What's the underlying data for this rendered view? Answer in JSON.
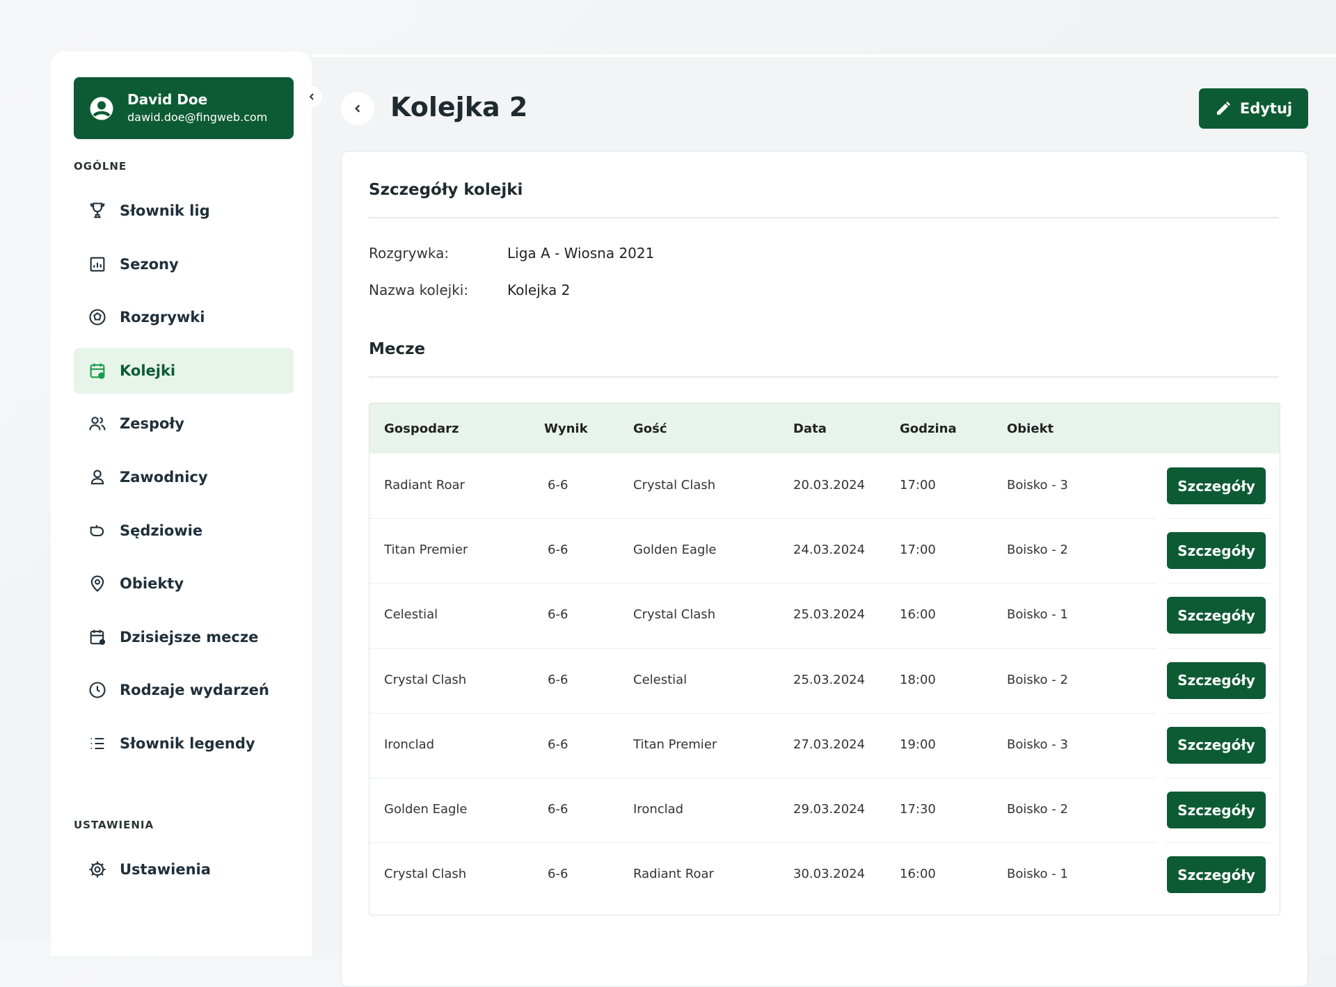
{
  "user": {
    "name": "David Doe",
    "email": "dawid.doe@fingweb.com"
  },
  "sidebar": {
    "sections": [
      {
        "label": "OGÓLNE",
        "items": [
          {
            "label": "Słownik lig"
          },
          {
            "label": "Sezony"
          },
          {
            "label": "Rozgrywki"
          },
          {
            "label": "Kolejki",
            "active": true
          },
          {
            "label": "Zespoły"
          },
          {
            "label": "Zawodnicy"
          },
          {
            "label": "Sędziowie"
          },
          {
            "label": "Obiekty"
          },
          {
            "label": "Dzisiejsze mecze"
          },
          {
            "label": "Rodzaje wydarzeń"
          },
          {
            "label": "Słownik legendy"
          }
        ]
      },
      {
        "label": "USTAWIENIA",
        "items": [
          {
            "label": "Ustawienia"
          }
        ]
      }
    ]
  },
  "header": {
    "title": "Kolejka 2",
    "edit": "Edytuj"
  },
  "details": {
    "title": "Szczegóły kolejki",
    "fields": [
      {
        "label": "Rozgrywka:",
        "value": "Liga A - Wiosna 2021"
      },
      {
        "label": "Nazwa kolejki:",
        "value": "Kolejka 2"
      }
    ]
  },
  "matches": {
    "title": "Mecze",
    "columns": [
      "Gospodarz",
      "Wynik",
      "Gość",
      "Data",
      "Godzina",
      "Obiekt"
    ],
    "action": "Szczegóły",
    "rows": [
      [
        "Radiant Roar",
        "6-6",
        "Crystal Clash",
        "20.03.2024",
        "17:00",
        "Boisko - 3"
      ],
      [
        "Titan Premier",
        "6-6",
        "Golden Eagle",
        "24.03.2024",
        "17:00",
        "Boisko - 2"
      ],
      [
        "Celestial",
        "6-6",
        "Crystal Clash",
        "25.03.2024",
        "16:00",
        "Boisko - 1"
      ],
      [
        "Crystal Clash",
        "6-6",
        "Celestial",
        "25.03.2024",
        "18:00",
        "Boisko - 2"
      ],
      [
        "Ironclad",
        "6-6",
        "Titan Premier",
        "27.03.2024",
        "19:00",
        "Boisko - 3"
      ],
      [
        "Golden Eagle",
        "6-6",
        "Ironclad",
        "29.03.2024",
        "17:30",
        "Boisko - 2"
      ],
      [
        "Crystal Clash",
        "6-6",
        "Radiant Roar",
        "30.03.2024",
        "16:00",
        "Boisko - 1"
      ]
    ]
  }
}
